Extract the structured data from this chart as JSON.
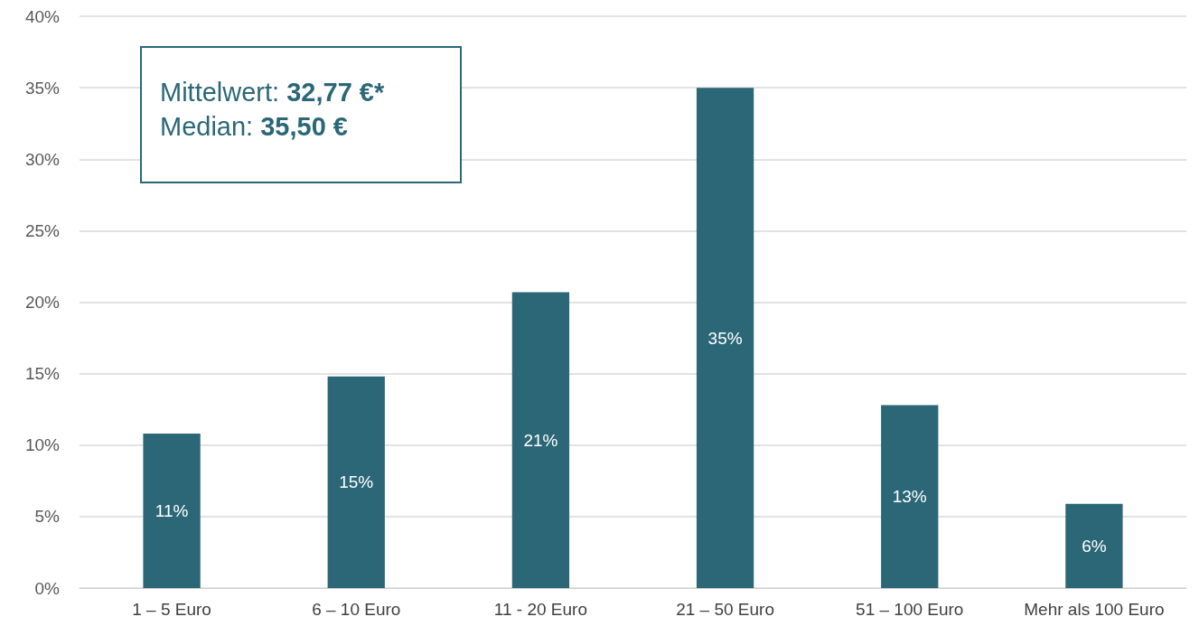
{
  "chart_data": {
    "type": "bar",
    "categories": [
      "1 – 5 Euro",
      "6 – 10 Euro",
      "11 - 20 Euro",
      "21 – 50 Euro",
      "51 – 100 Euro",
      "Mehr als 100 Euro"
    ],
    "values": [
      10.8,
      14.8,
      20.7,
      35,
      12.8,
      5.9
    ],
    "value_labels": [
      "11%",
      "15%",
      "21%",
      "35%",
      "13%",
      "6%"
    ],
    "color": "#2b6777",
    "ylim": [
      0,
      40
    ],
    "yticks": [
      {
        "value": 0,
        "label": "0%"
      },
      {
        "value": 5,
        "label": "5%"
      },
      {
        "value": 10,
        "label": "10%"
      },
      {
        "value": 15,
        "label": "15%"
      },
      {
        "value": 20,
        "label": "20%"
      },
      {
        "value": 25,
        "label": "25%"
      },
      {
        "value": 30,
        "label": "30%"
      },
      {
        "value": 35,
        "label": "35%"
      },
      {
        "value": 40,
        "label": "40%"
      }
    ],
    "grid": "y",
    "annotations": [
      "Mittelwert: 32,77 €*",
      "Median: 35,50 €"
    ]
  }
}
